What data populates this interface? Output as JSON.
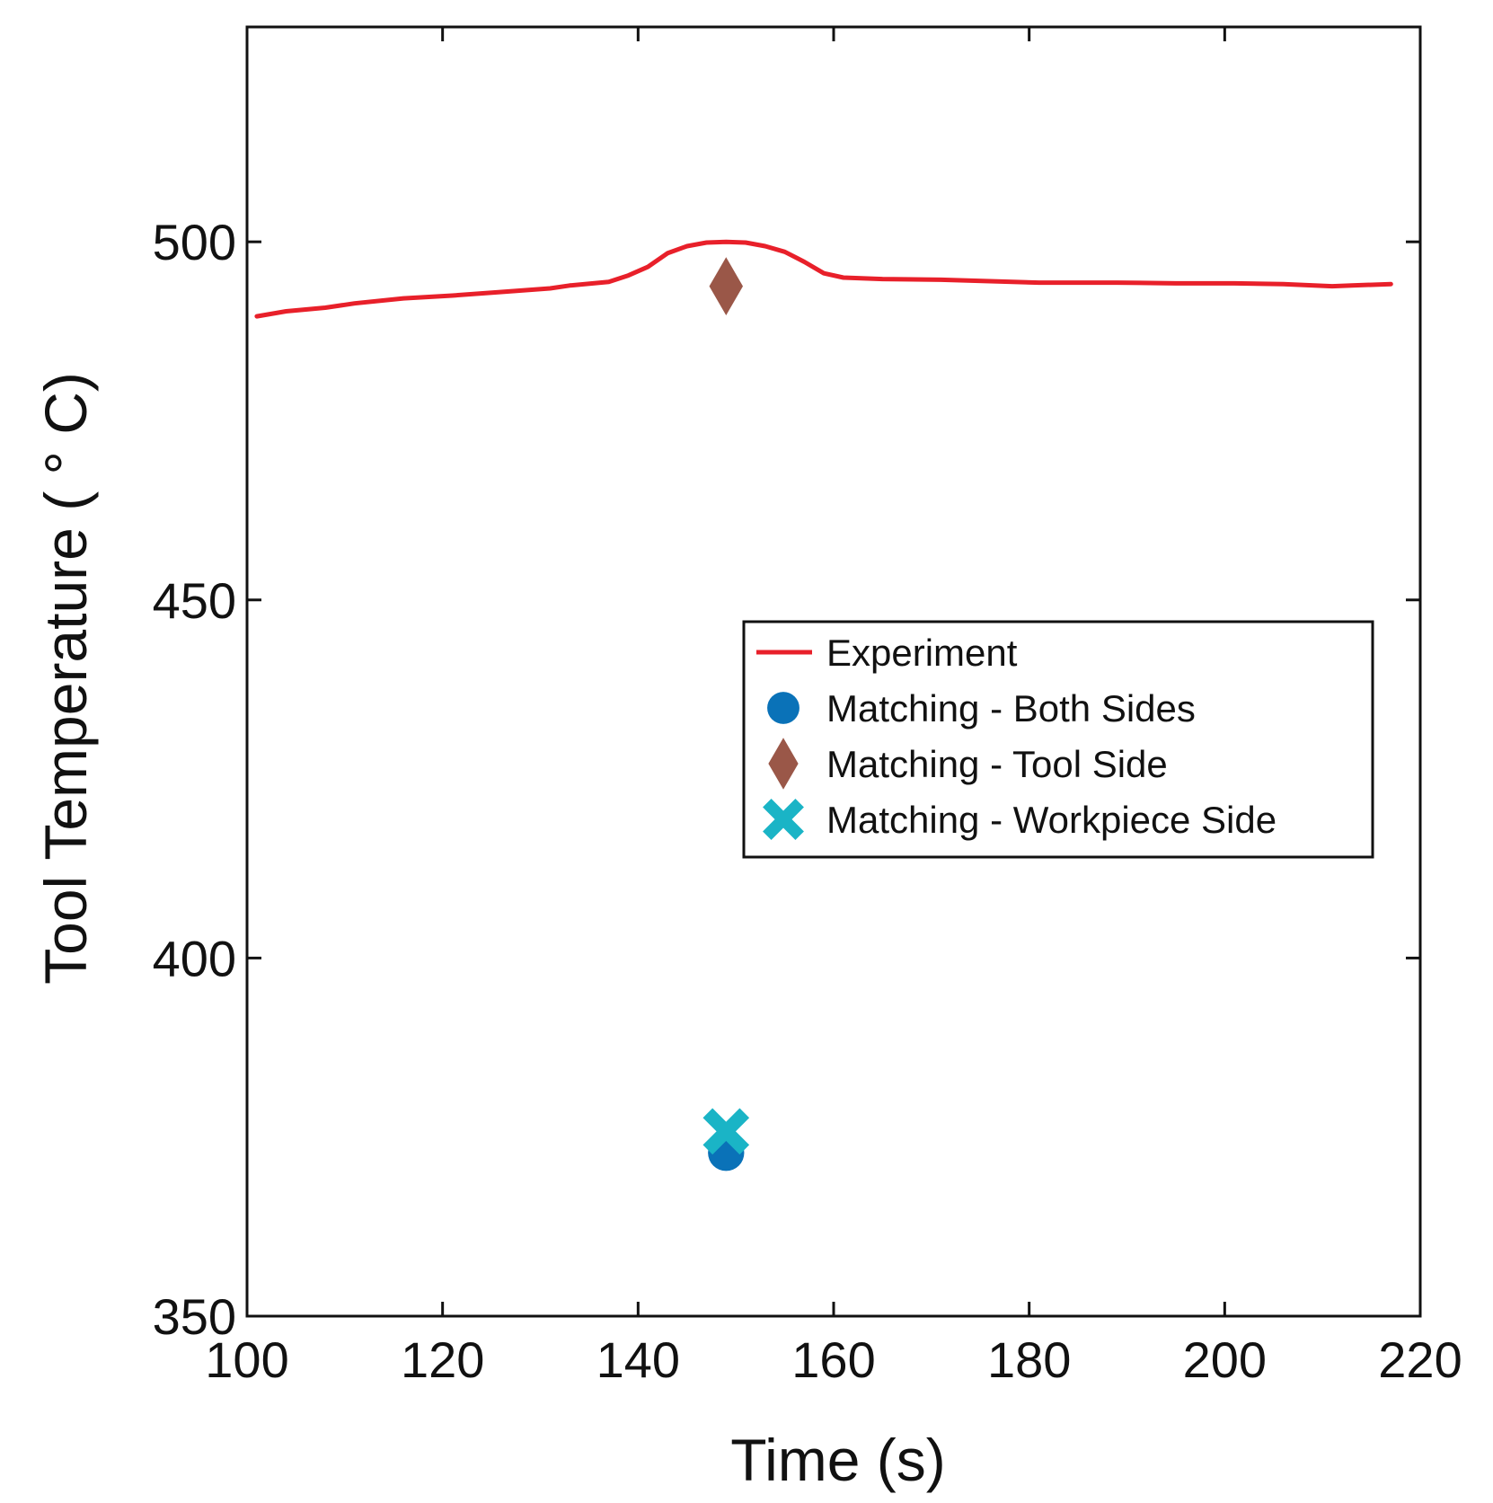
{
  "chart_data": {
    "type": "line",
    "xlabel": "Time (s)",
    "ylabel": "Tool Temperature ( ° C)",
    "xlim": [
      100,
      220
    ],
    "ylim": [
      350,
      530
    ],
    "xticks": [
      100,
      120,
      140,
      160,
      180,
      200,
      220
    ],
    "yticks": [
      350,
      400,
      450,
      500
    ],
    "grid": false,
    "legend_position": "center-right",
    "series": [
      {
        "name": "Experiment",
        "kind": "line",
        "color": "#e8202a",
        "x": [
          101,
          104,
          108,
          111,
          116,
          121,
          126,
          131,
          133,
          137,
          139,
          141,
          143,
          145,
          147,
          149,
          151,
          153,
          155,
          157,
          159,
          161,
          165,
          171,
          176,
          181,
          185,
          189,
          195,
          201,
          206,
          211,
          213,
          217
        ],
        "y": [
          489.6,
          490.3,
          490.8,
          491.4,
          492.1,
          492.5,
          493.0,
          493.5,
          493.9,
          494.4,
          495.3,
          496.5,
          498.4,
          499.4,
          499.9,
          500.0,
          499.9,
          499.4,
          498.6,
          497.2,
          495.6,
          495.0,
          494.8,
          494.7,
          494.5,
          494.3,
          494.3,
          494.3,
          494.2,
          494.2,
          494.1,
          493.8,
          493.9,
          494.1
        ]
      },
      {
        "name": "Matching - Both Sides",
        "kind": "marker",
        "marker": "circle",
        "color": "#0a72b8",
        "x": [
          149
        ],
        "y": [
          372.8
        ]
      },
      {
        "name": "Matching - Tool Side",
        "kind": "marker",
        "marker": "diamond",
        "color": "#9a5748",
        "x": [
          149
        ],
        "y": [
          493.8
        ]
      },
      {
        "name": "Matching - Workpiece Side",
        "kind": "marker",
        "marker": "x",
        "color": "#1ab4c6",
        "x": [
          149
        ],
        "y": [
          375.8
        ]
      }
    ]
  }
}
